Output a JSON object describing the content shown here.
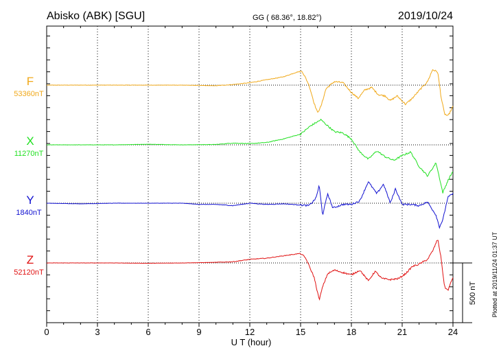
{
  "header": {
    "station": "Abisko (ABK)  [SGU]",
    "coords": "GG ( 68.36°,  18.82°)",
    "date": "2019/10/24"
  },
  "footer": {
    "plotted": "Plotted at 2019/11/24 01:37 UT"
  },
  "chart_data": {
    "type": "line",
    "xlabel": "U T (hour)",
    "xlim": [
      0,
      24
    ],
    "xticks": [
      0,
      3,
      6,
      9,
      12,
      15,
      18,
      21,
      24
    ],
    "x_tick_labels": [
      "0",
      "3",
      "6",
      "9",
      "12",
      "15",
      "18",
      "21",
      "24"
    ],
    "scale_bar": {
      "label": "500 nT",
      "value_nT": 500
    },
    "grid": true,
    "series": [
      {
        "name": "F",
        "baseline_label": "53360nT",
        "color": "#f0a818",
        "points": [
          [
            0,
            0
          ],
          [
            2,
            0
          ],
          [
            4,
            0
          ],
          [
            6,
            0
          ],
          [
            8,
            0
          ],
          [
            10,
            -5
          ],
          [
            11,
            5
          ],
          [
            12,
            20
          ],
          [
            13,
            45
          ],
          [
            14,
            70
          ],
          [
            14.8,
            110
          ],
          [
            15.1,
            115
          ],
          [
            15.5,
            0
          ],
          [
            15.8,
            -150
          ],
          [
            16.0,
            -230
          ],
          [
            16.2,
            -180
          ],
          [
            16.5,
            -30
          ],
          [
            17,
            30
          ],
          [
            17.5,
            20
          ],
          [
            18,
            -60
          ],
          [
            18.4,
            -110
          ],
          [
            18.8,
            -40
          ],
          [
            19.2,
            -20
          ],
          [
            19.6,
            -80
          ],
          [
            20.0,
            -90
          ],
          [
            20.3,
            -130
          ],
          [
            20.7,
            -90
          ],
          [
            21.2,
            -160
          ],
          [
            21.6,
            -110
          ],
          [
            22.1,
            -30
          ],
          [
            22.5,
            30
          ],
          [
            22.8,
            130
          ],
          [
            23.1,
            110
          ],
          [
            23.3,
            -100
          ],
          [
            23.5,
            -240
          ],
          [
            23.7,
            -260
          ],
          [
            24,
            -180
          ]
        ]
      },
      {
        "name": "X",
        "baseline_label": "11270nT",
        "color": "#20e020",
        "points": [
          [
            0,
            0
          ],
          [
            4,
            0
          ],
          [
            6,
            5
          ],
          [
            8,
            0
          ],
          [
            10,
            3
          ],
          [
            11,
            15
          ],
          [
            12,
            10
          ],
          [
            13,
            20
          ],
          [
            14,
            50
          ],
          [
            15,
            90
          ],
          [
            15.6,
            160
          ],
          [
            16.2,
            210
          ],
          [
            16.6,
            160
          ],
          [
            17,
            110
          ],
          [
            17.5,
            100
          ],
          [
            18,
            50
          ],
          [
            18.5,
            -60
          ],
          [
            19,
            -120
          ],
          [
            19.5,
            -50
          ],
          [
            20,
            -100
          ],
          [
            20.5,
            -130
          ],
          [
            21,
            -90
          ],
          [
            21.5,
            -60
          ],
          [
            22,
            -180
          ],
          [
            22.5,
            -260
          ],
          [
            23,
            -150
          ],
          [
            23.4,
            -400
          ],
          [
            23.7,
            -300
          ],
          [
            24,
            -220
          ]
        ]
      },
      {
        "name": "Y",
        "baseline_label": "1840nT",
        "color": "#1010d0",
        "points": [
          [
            0,
            0
          ],
          [
            2,
            -5
          ],
          [
            4,
            0
          ],
          [
            6,
            0
          ],
          [
            8,
            0
          ],
          [
            9,
            -10
          ],
          [
            10,
            -10
          ],
          [
            11,
            -20
          ],
          [
            12,
            0
          ],
          [
            13,
            -10
          ],
          [
            14,
            -5
          ],
          [
            15,
            -15
          ],
          [
            15.5,
            -20
          ],
          [
            15.9,
            40
          ],
          [
            16.1,
            150
          ],
          [
            16.3,
            -100
          ],
          [
            16.6,
            80
          ],
          [
            16.9,
            -40
          ],
          [
            17.5,
            -10
          ],
          [
            18,
            -10
          ],
          [
            18.5,
            20
          ],
          [
            19,
            180
          ],
          [
            19.5,
            80
          ],
          [
            19.9,
            160
          ],
          [
            20.3,
            0
          ],
          [
            20.6,
            120
          ],
          [
            21,
            -10
          ],
          [
            21.5,
            -10
          ],
          [
            22,
            -20
          ],
          [
            22.5,
            10
          ],
          [
            23,
            -100
          ],
          [
            23.2,
            -200
          ],
          [
            23.4,
            -140
          ],
          [
            23.7,
            50
          ],
          [
            24,
            80
          ]
        ]
      },
      {
        "name": "Z",
        "baseline_label": "52120nT",
        "color": "#e01010",
        "points": [
          [
            0,
            0
          ],
          [
            4,
            0
          ],
          [
            6,
            -3
          ],
          [
            8,
            0
          ],
          [
            10,
            5
          ],
          [
            11,
            10
          ],
          [
            12,
            30
          ],
          [
            13,
            40
          ],
          [
            14,
            60
          ],
          [
            15,
            80
          ],
          [
            15.3,
            40
          ],
          [
            15.8,
            -120
          ],
          [
            16.1,
            -310
          ],
          [
            16.3,
            -200
          ],
          [
            16.6,
            -90
          ],
          [
            17,
            -60
          ],
          [
            17.5,
            -80
          ],
          [
            18,
            -100
          ],
          [
            18.5,
            -60
          ],
          [
            19,
            -150
          ],
          [
            19.4,
            -70
          ],
          [
            19.8,
            -130
          ],
          [
            20.3,
            -140
          ],
          [
            20.8,
            -130
          ],
          [
            21.2,
            -90
          ],
          [
            21.6,
            -30
          ],
          [
            22,
            -10
          ],
          [
            22.5,
            30
          ],
          [
            22.8,
            100
          ],
          [
            23.1,
            200
          ],
          [
            23.3,
            40
          ],
          [
            23.5,
            -200
          ],
          [
            23.7,
            -230
          ],
          [
            24,
            -120
          ]
        ]
      }
    ]
  }
}
